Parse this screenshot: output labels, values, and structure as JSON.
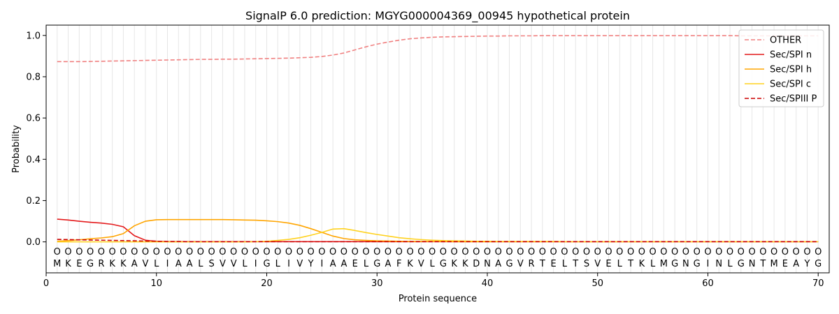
{
  "chart_data": {
    "type": "line",
    "title": "SignalP 6.0 prediction: MGYG000004369_00945 hypothetical protein",
    "xlabel": "Protein sequence",
    "ylabel": "Probability",
    "xlim": [
      0,
      71
    ],
    "ylim": [
      -0.15,
      1.05
    ],
    "xticks": [
      0,
      10,
      20,
      30,
      40,
      50,
      60,
      70
    ],
    "yticks": [
      0.0,
      0.2,
      0.4,
      0.6,
      0.8,
      1.0
    ],
    "grid": "vertical lines at each residue",
    "legend_position": "top-right",
    "sequence": "MKEGRKKAVLIAALSVVLIGLIVYIAAELGAFKVLGKKDNAGVRTELTSVELTKLMGNGINLGNTMEAYG",
    "region_label": "O",
    "series": [
      {
        "name": "OTHER",
        "color": "#f08080",
        "dash": "dashed",
        "values": [
          0.873,
          0.873,
          0.873,
          0.874,
          0.875,
          0.876,
          0.877,
          0.878,
          0.879,
          0.88,
          0.881,
          0.882,
          0.883,
          0.884,
          0.884,
          0.885,
          0.885,
          0.886,
          0.887,
          0.888,
          0.889,
          0.89,
          0.892,
          0.894,
          0.898,
          0.905,
          0.915,
          0.93,
          0.945,
          0.958,
          0.968,
          0.977,
          0.984,
          0.988,
          0.991,
          0.993,
          0.994,
          0.995,
          0.996,
          0.997,
          0.997,
          0.998,
          0.998,
          0.998,
          0.999,
          0.999,
          0.999,
          0.999,
          0.999,
          0.999,
          0.999,
          0.999,
          0.999,
          0.999,
          0.999,
          0.999,
          0.999,
          0.999,
          0.999,
          0.999,
          0.999,
          0.999,
          0.998,
          0.998,
          0.998,
          0.998,
          0.998,
          0.998,
          0.998,
          0.998
        ]
      },
      {
        "name": "Sec/SPI n",
        "color": "#e41a1c",
        "dash": "solid",
        "values": [
          0.11,
          0.106,
          0.1,
          0.095,
          0.091,
          0.085,
          0.073,
          0.03,
          0.008,
          0.003,
          0.001,
          0.001,
          0.001,
          0.001,
          0.001,
          0.001,
          0.001,
          0.001,
          0.001,
          0.001,
          0.001,
          0.001,
          0.001,
          0.001,
          0.001,
          0.001,
          0.001,
          0.001,
          0.001,
          0.001,
          0.001,
          0.001,
          0.001,
          0.001,
          0.001,
          0.001,
          0.001,
          0.001,
          0.001,
          0.001,
          0.001,
          0.001,
          0.001,
          0.001,
          0.001,
          0.001,
          0.001,
          0.001,
          0.001,
          0.001,
          0.001,
          0.001,
          0.001,
          0.001,
          0.001,
          0.001,
          0.001,
          0.001,
          0.001,
          0.001,
          0.001,
          0.001,
          0.001,
          0.001,
          0.001,
          0.001,
          0.001,
          0.001,
          0.001,
          0.001
        ]
      },
      {
        "name": "Sec/SPI h",
        "color": "#ffa500",
        "dash": "solid",
        "values": [
          0.003,
          0.006,
          0.01,
          0.015,
          0.019,
          0.025,
          0.04,
          0.078,
          0.1,
          0.107,
          0.108,
          0.108,
          0.108,
          0.108,
          0.108,
          0.108,
          0.107,
          0.106,
          0.105,
          0.102,
          0.098,
          0.091,
          0.08,
          0.064,
          0.046,
          0.028,
          0.016,
          0.01,
          0.007,
          0.005,
          0.004,
          0.003,
          0.002,
          0.002,
          0.002,
          0.002,
          0.001,
          0.001,
          0.001,
          0.001,
          0.001,
          0.001,
          0.001,
          0.001,
          0.001,
          0.001,
          0.001,
          0.001,
          0.001,
          0.001,
          0.001,
          0.001,
          0.001,
          0.001,
          0.001,
          0.001,
          0.001,
          0.001,
          0.001,
          0.001,
          0.001,
          0.001,
          0.001,
          0.001,
          0.001,
          0.001,
          0.001,
          0.001,
          0.001,
          0.001
        ]
      },
      {
        "name": "Sec/SPI c",
        "color": "#ffd21f",
        "dash": "solid",
        "values": [
          0.0,
          0.0,
          0.0,
          0.0,
          0.0,
          0.0,
          0.0,
          0.0,
          0.0,
          0.0,
          0.0,
          0.0,
          0.0,
          0.0,
          0.0,
          0.0,
          0.0,
          0.0,
          0.001,
          0.003,
          0.007,
          0.012,
          0.02,
          0.032,
          0.046,
          0.062,
          0.064,
          0.055,
          0.045,
          0.036,
          0.028,
          0.02,
          0.015,
          0.011,
          0.008,
          0.006,
          0.005,
          0.004,
          0.003,
          0.003,
          0.002,
          0.002,
          0.002,
          0.002,
          0.002,
          0.002,
          0.001,
          0.001,
          0.001,
          0.001,
          0.001,
          0.001,
          0.001,
          0.001,
          0.001,
          0.001,
          0.001,
          0.001,
          0.001,
          0.001,
          0.001,
          0.001,
          0.001,
          0.001,
          0.001,
          0.001,
          0.001,
          0.001,
          0.001,
          0.001
        ]
      },
      {
        "name": "Sec/SPIII P",
        "color": "#cc0000",
        "dash": "dashed",
        "values": [
          0.012,
          0.011,
          0.01,
          0.009,
          0.008,
          0.007,
          0.006,
          0.005,
          0.004,
          0.003,
          0.002,
          0.002,
          0.001,
          0.001,
          0.001,
          0.001,
          0.001,
          0.001,
          0.001,
          0.001,
          0.001,
          0.001,
          0.001,
          0.001,
          0.001,
          0.001,
          0.001,
          0.001,
          0.001,
          0.001,
          0.001,
          0.001,
          0.001,
          0.001,
          0.001,
          0.001,
          0.001,
          0.001,
          0.001,
          0.001,
          0.001,
          0.001,
          0.001,
          0.001,
          0.001,
          0.001,
          0.001,
          0.001,
          0.001,
          0.001,
          0.001,
          0.001,
          0.001,
          0.001,
          0.001,
          0.001,
          0.001,
          0.001,
          0.001,
          0.001,
          0.001,
          0.001,
          0.001,
          0.001,
          0.001,
          0.001,
          0.001,
          0.001,
          0.001,
          0.001
        ]
      }
    ]
  }
}
